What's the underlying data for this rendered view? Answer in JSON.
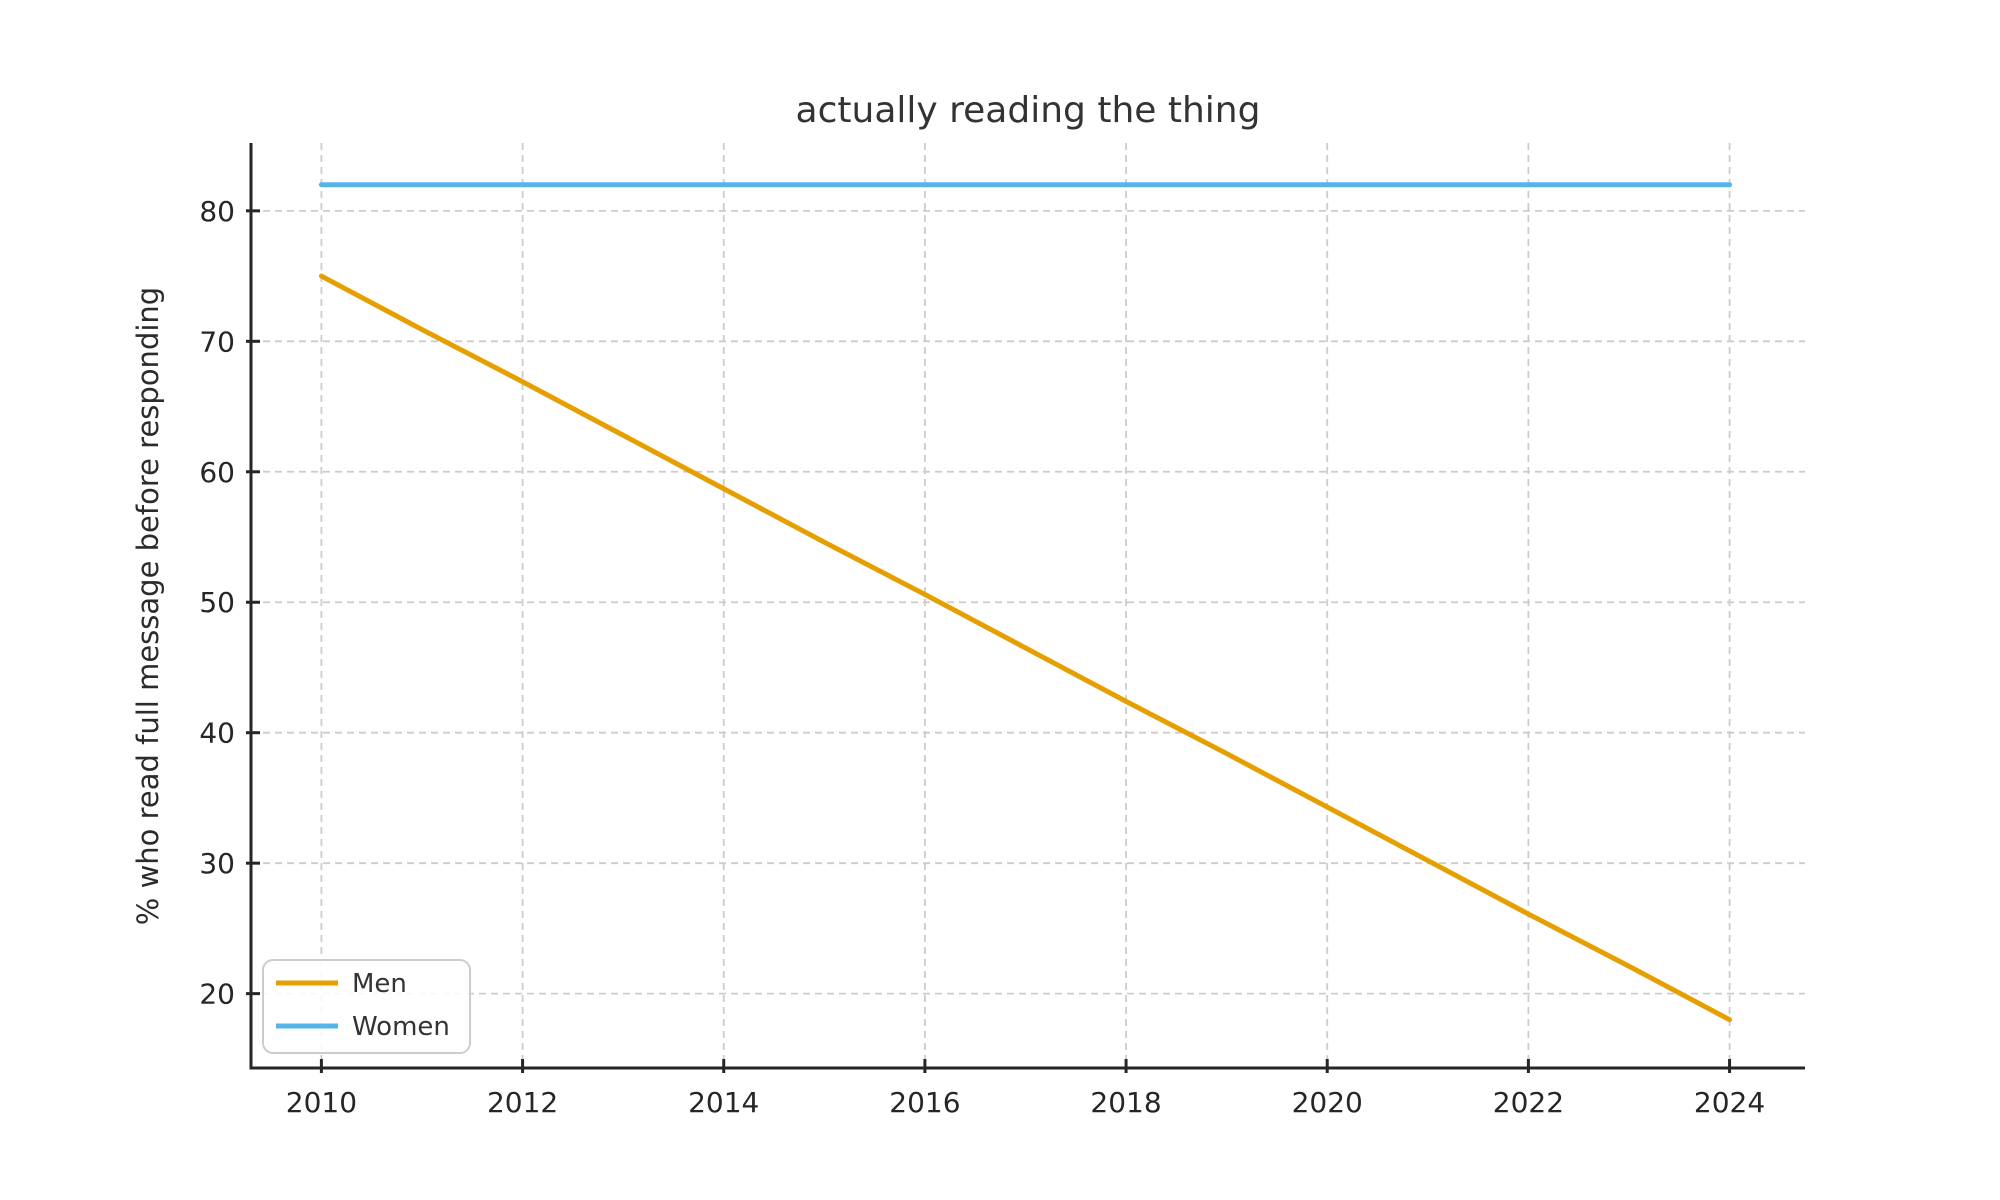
{
  "chart_data": {
    "type": "line",
    "title": "actually reading the thing",
    "xlabel": "",
    "ylabel": "% who read full message before responding",
    "x": [
      2010,
      2011,
      2012,
      2013,
      2014,
      2015,
      2016,
      2017,
      2018,
      2019,
      2020,
      2021,
      2022,
      2023,
      2024
    ],
    "series": [
      {
        "name": "Men",
        "color": "#E69F00",
        "values": [
          75.0,
          70.9,
          66.9,
          62.8,
          58.7,
          54.6,
          50.6,
          46.5,
          42.4,
          38.4,
          34.3,
          30.2,
          26.1,
          22.1,
          18.0
        ]
      },
      {
        "name": "Women",
        "color": "#56B4E9",
        "values": [
          82.0,
          82.0,
          82.0,
          82.0,
          82.0,
          82.0,
          82.0,
          82.0,
          82.0,
          82.0,
          82.0,
          82.0,
          82.0,
          82.0,
          82.0
        ]
      }
    ],
    "xticks": [
      2010,
      2012,
      2014,
      2016,
      2018,
      2020,
      2022,
      2024
    ],
    "yticks": [
      20,
      30,
      40,
      50,
      60,
      70,
      80
    ],
    "xlim": [
      2009.3,
      2024.75
    ],
    "ylim": [
      14.3,
      85.2
    ],
    "grid": true,
    "grid_style": "dashed",
    "legend": {
      "position": "lower-left",
      "entries": [
        "Men",
        "Women"
      ]
    }
  },
  "colors": {
    "axis": "#262626",
    "tick_label": "#262626",
    "grid": "#cccccc",
    "title": "#333333",
    "legend_border": "#cccccc",
    "legend_background": "#ffffff"
  }
}
